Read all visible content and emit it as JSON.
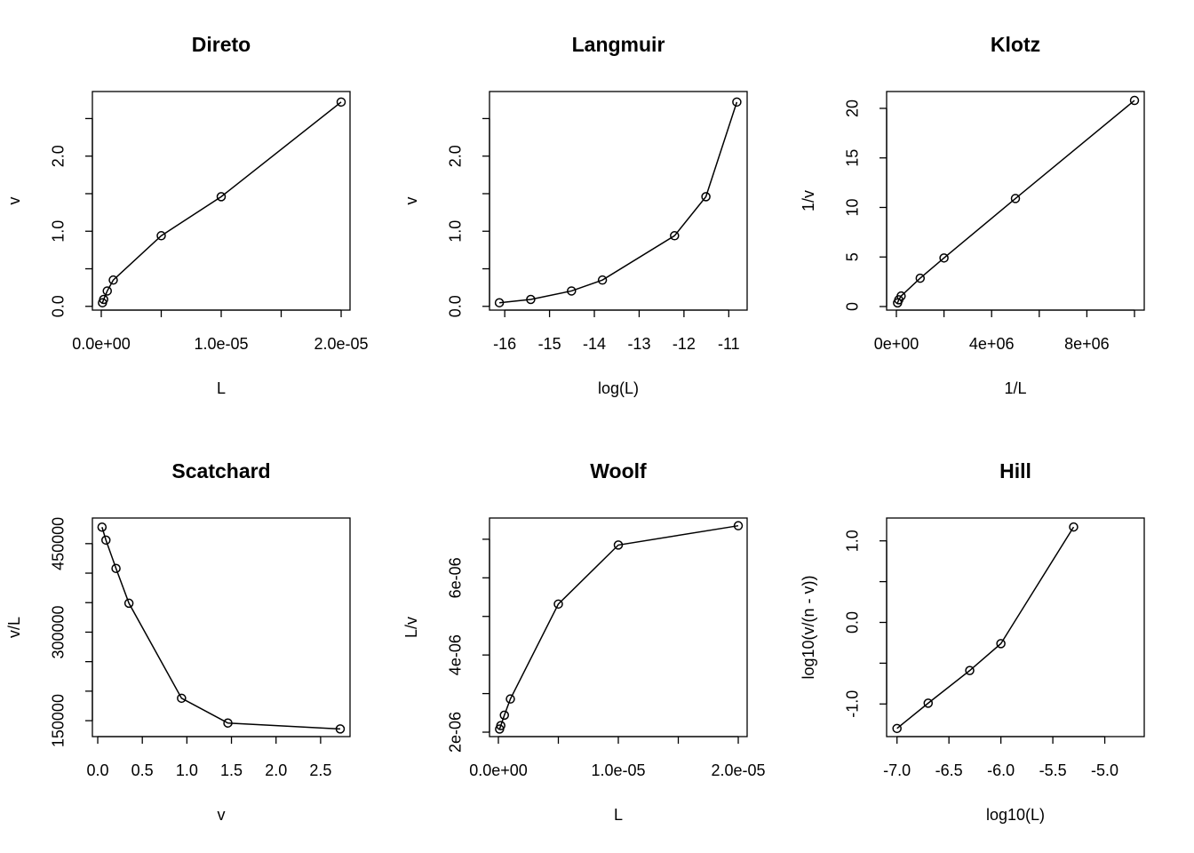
{
  "chart_data": [
    {
      "type": "line",
      "title": "Direto",
      "xlabel": "L",
      "ylabel": "v",
      "color": "#000000",
      "marker": "circle",
      "x": [
        1e-07,
        2e-07,
        5e-07,
        1e-06,
        5e-06,
        1e-05,
        2e-05
      ],
      "values": [
        0.048,
        0.092,
        0.205,
        0.35,
        0.94,
        1.46,
        2.72
      ],
      "xlim": [
        -7.4e-07,
        2.074e-05
      ],
      "ylim": [
        -0.05,
        2.86
      ],
      "xticks": [
        {
          "value": 0,
          "label": "0.0e+00"
        },
        {
          "value": 5e-06,
          "label": null
        },
        {
          "value": 1e-05,
          "label": "1.0e-05"
        },
        {
          "value": 1.5e-05,
          "label": null
        },
        {
          "value": 2e-05,
          "label": "2.0e-05"
        }
      ],
      "yticks": [
        {
          "value": 0,
          "label": "0.0"
        },
        {
          "value": 0.5,
          "label": null
        },
        {
          "value": 1,
          "label": "1.0"
        },
        {
          "value": 1.5,
          "label": null
        },
        {
          "value": 2,
          "label": "2.0"
        },
        {
          "value": 2.5,
          "label": null
        }
      ]
    },
    {
      "type": "line",
      "title": "Langmuir",
      "xlabel": "log(L)",
      "ylabel": "v",
      "color": "#000000",
      "marker": "circle",
      "x": [
        -16.12,
        -15.42,
        -14.51,
        -13.82,
        -12.21,
        -11.51,
        -10.82
      ],
      "values": [
        0.048,
        0.092,
        0.205,
        0.35,
        0.94,
        1.46,
        2.72
      ],
      "xlim": [
        -16.34,
        -10.59
      ],
      "ylim": [
        -0.05,
        2.86
      ],
      "xticks": [
        -16,
        -15,
        -14,
        -13,
        -12,
        -11
      ],
      "yticks": [
        {
          "value": 0,
          "label": "0.0"
        },
        {
          "value": 0.5,
          "label": null
        },
        {
          "value": 1,
          "label": "1.0"
        },
        {
          "value": 1.5,
          "label": null
        },
        {
          "value": 2,
          "label": "2.0"
        },
        {
          "value": 2.5,
          "label": null
        }
      ]
    },
    {
      "type": "line",
      "title": "Klotz",
      "xlabel": "1/L",
      "ylabel": "1/v",
      "color": "#000000",
      "marker": "circle",
      "x": [
        10000000,
        5000000,
        2000000,
        1000000,
        200000,
        100000,
        50000
      ],
      "values": [
        20.8,
        10.9,
        4.9,
        2.86,
        1.06,
        0.68,
        0.37
      ],
      "xlim": [
        -410000,
        10410000
      ],
      "ylim": [
        -0.36,
        21.7
      ],
      "xticks": [
        {
          "value": 0,
          "label": "0e+00"
        },
        {
          "value": 2000000,
          "label": null
        },
        {
          "value": 4000000,
          "label": "4e+06"
        },
        {
          "value": 6000000,
          "label": null
        },
        {
          "value": 8000000,
          "label": "8e+06"
        },
        {
          "value": 10000000,
          "label": null
        }
      ],
      "yticks": [
        0,
        5,
        10,
        15,
        20
      ]
    },
    {
      "type": "line",
      "title": "Scatchard",
      "xlabel": "v",
      "ylabel": "v/L",
      "color": "#000000",
      "marker": "circle",
      "x": [
        0.048,
        0.092,
        0.205,
        0.35,
        0.94,
        1.46,
        2.72
      ],
      "values": [
        478000,
        456000,
        408000,
        349000,
        188000,
        146000,
        136000
      ],
      "xlim": [
        -0.06,
        2.83
      ],
      "ylim": [
        123000,
        493400
      ],
      "xticks": [
        {
          "value": 0,
          "label": "0.0"
        },
        0.5,
        {
          "value": 1,
          "label": "1.0"
        },
        1.5,
        {
          "value": 2,
          "label": "2.0"
        },
        2.5
      ],
      "yticks": [
        150000,
        {
          "value": 200000,
          "label": null
        },
        {
          "value": 250000,
          "label": null
        },
        300000,
        {
          "value": 350000,
          "label": null
        },
        {
          "value": 400000,
          "label": null
        },
        450000
      ]
    },
    {
      "type": "line",
      "title": "Woolf",
      "xlabel": "L",
      "ylabel": "L/v",
      "color": "#000000",
      "marker": "circle",
      "x": [
        1e-07,
        2e-07,
        5e-07,
        1e-06,
        5e-06,
        1e-05,
        2e-05
      ],
      "values": [
        2.08e-06,
        2.17e-06,
        2.44e-06,
        2.86e-06,
        5.32e-06,
        6.85e-06,
        7.35e-06
      ],
      "xlim": [
        -7.4e-07,
        2.074e-05
      ],
      "ylim": [
        1.885e-06,
        7.55e-06
      ],
      "xticks": [
        {
          "value": 0,
          "label": "0.0e+00"
        },
        {
          "value": 5e-06,
          "label": null
        },
        {
          "value": 1e-05,
          "label": "1.0e-05"
        },
        {
          "value": 1.5e-05,
          "label": null
        },
        {
          "value": 2e-05,
          "label": "2.0e-05"
        }
      ],
      "yticks": [
        {
          "value": 2e-06,
          "label": "2e-06"
        },
        {
          "value": 3e-06,
          "label": null
        },
        {
          "value": 4e-06,
          "label": "4e-06"
        },
        {
          "value": 5e-06,
          "label": null
        },
        {
          "value": 6e-06,
          "label": "6e-06"
        },
        {
          "value": 7e-06,
          "label": null
        }
      ]
    },
    {
      "type": "line",
      "title": "Hill",
      "xlabel": "log10(L)",
      "ylabel": "log10(v/(n - v))",
      "color": "#000000",
      "marker": "circle",
      "x": [
        -7.0,
        -6.7,
        -6.3,
        -6.0,
        -5.3
      ],
      "values": [
        -1.3,
        -0.99,
        -0.59,
        -0.26,
        1.17
      ],
      "xlim": [
        -7.1,
        -4.62
      ],
      "ylim": [
        -1.4,
        1.28
      ],
      "xticks": [
        {
          "value": -7,
          "label": "-7.0"
        },
        -6.5,
        {
          "value": -6,
          "label": "-6.0"
        },
        -5.5,
        {
          "value": -5,
          "label": "-5.0"
        }
      ],
      "yticks": [
        {
          "value": -1,
          "label": "-1.0"
        },
        {
          "value": -0.5,
          "label": null
        },
        {
          "value": 0,
          "label": "0.0"
        },
        {
          "value": 0.5,
          "label": null
        },
        {
          "value": 1,
          "label": "1.0"
        }
      ]
    }
  ]
}
